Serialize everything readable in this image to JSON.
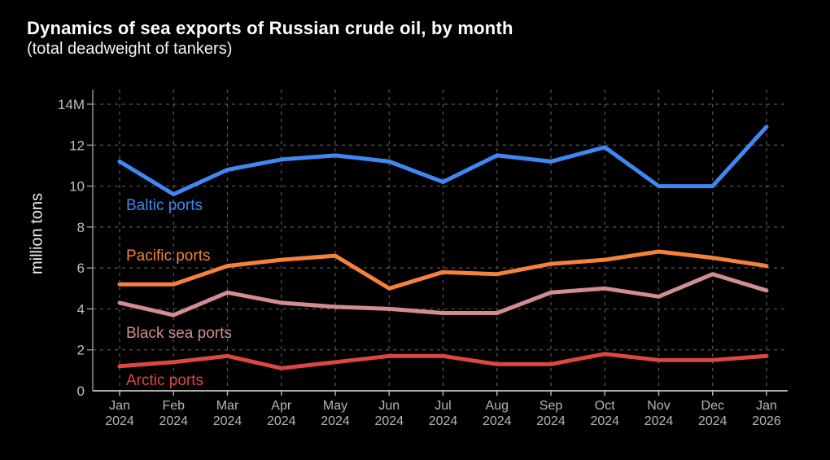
{
  "header": {
    "title": "Dynamics of sea exports of Russian crude oil, by month",
    "subtitle": "(total deadweight of tankers)"
  },
  "chart_data": {
    "type": "line",
    "title": "Dynamics of sea exports of Russian crude oil, by month",
    "subtitle": "(total deadweight of tankers)",
    "ylabel": "million tons",
    "xlabel": "",
    "ylim": [
      0,
      14
    ],
    "yticks": [
      0,
      2,
      4,
      6,
      8,
      10,
      12,
      14
    ],
    "ytick_labels": [
      "0",
      "2",
      "4",
      "6",
      "8",
      "10",
      "12",
      "14M"
    ],
    "categories": [
      "Jan 2024",
      "Feb 2024",
      "Mar 2024",
      "Apr 2024",
      "May 2024",
      "Jun 2024",
      "Jul 2024",
      "Aug 2024",
      "Sep 2024",
      "Oct 2024",
      "Nov 2024",
      "Dec 2024",
      "Jan 2026"
    ],
    "grid": "dashed-both-axes",
    "legend": "inline-labels-on-lines",
    "background_color": "#000000",
    "series": [
      {
        "name": "Baltic ports",
        "color": "#3f87f2",
        "values": [
          11.2,
          9.6,
          10.8,
          11.3,
          11.5,
          11.2,
          10.2,
          11.5,
          11.2,
          11.9,
          10.0,
          10.0,
          12.9
        ]
      },
      {
        "name": "Pacific ports",
        "color": "#f5823a",
        "values": [
          5.2,
          5.2,
          6.1,
          6.4,
          6.6,
          5.0,
          5.8,
          5.7,
          6.2,
          6.4,
          6.8,
          6.5,
          6.1
        ]
      },
      {
        "name": "Black sea ports",
        "color": "#d18d8f",
        "values": [
          4.3,
          3.7,
          4.8,
          4.3,
          4.1,
          4.0,
          3.8,
          3.8,
          4.8,
          5.0,
          4.6,
          5.7,
          4.9
        ]
      },
      {
        "name": "Arctic ports",
        "color": "#dc4742",
        "values": [
          1.2,
          1.4,
          1.7,
          1.1,
          1.4,
          1.7,
          1.7,
          1.3,
          1.3,
          1.8,
          1.5,
          1.5,
          1.7
        ]
      }
    ]
  }
}
